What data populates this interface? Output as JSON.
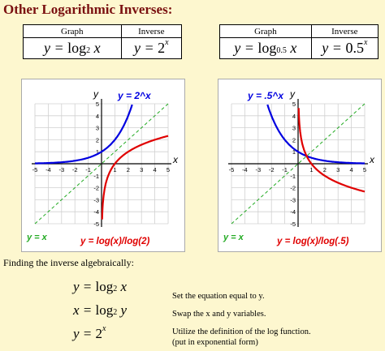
{
  "page_title": "Other Logarithmic Inverses:",
  "tables": [
    {
      "header_graph": "Graph",
      "header_inverse": "Inverse",
      "graph_base": "2",
      "inverse_base": "2"
    },
    {
      "header_graph": "Graph",
      "header_inverse": "Inverse",
      "graph_base": "0.5",
      "inverse_base": "0.5"
    }
  ],
  "eq_symbols": {
    "y": "y",
    "x": "x",
    "eq": "=",
    "log": "log"
  },
  "charts": [
    {
      "label_exp": "y = 2^x",
      "label_log": "y = log(x)/log(2)",
      "label_line": "y = x",
      "x_axis_label": "x",
      "y_axis_label": "y",
      "x_ticks": [
        "-5",
        "-4",
        "-3",
        "-2",
        "-1",
        "1",
        "2",
        "3",
        "4",
        "5"
      ],
      "y_ticks": [
        "5",
        "4",
        "3",
        "2",
        "1",
        "-1",
        "-2",
        "-3",
        "-4",
        "-5"
      ]
    },
    {
      "label_exp": "y = .5^x",
      "label_log": "y = log(x)/log(.5)",
      "label_line": "y = x",
      "x_axis_label": "x",
      "y_axis_label": "y",
      "x_ticks": [
        "-5",
        "-4",
        "-3",
        "-2",
        "-1",
        "1",
        "2",
        "3",
        "4",
        "5"
      ],
      "y_ticks": [
        "5",
        "4",
        "3",
        "2",
        "1",
        "-1",
        "-2",
        "-3",
        "-4",
        "-5"
      ]
    }
  ],
  "chart_data": [
    {
      "type": "line",
      "xlim": [
        -5,
        5
      ],
      "ylim": [
        -5,
        5
      ],
      "grid": true,
      "series": [
        {
          "name": "y = 2^x",
          "color": "#0000e0",
          "base": 2,
          "kind": "exp"
        },
        {
          "name": "y = log(x)/log(2)",
          "color": "#e00000",
          "base": 2,
          "kind": "log"
        },
        {
          "name": "y = x",
          "color": "#22aa22",
          "kind": "identity"
        }
      ]
    },
    {
      "type": "line",
      "xlim": [
        -5,
        5
      ],
      "ylim": [
        -5,
        5
      ],
      "grid": true,
      "series": [
        {
          "name": "y = .5^x",
          "color": "#0000e0",
          "base": 0.5,
          "kind": "exp"
        },
        {
          "name": "y = log(x)/log(.5)",
          "color": "#e00000",
          "base": 0.5,
          "kind": "log"
        },
        {
          "name": "y = x",
          "color": "#22aa22",
          "kind": "identity"
        }
      ]
    }
  ],
  "algebra": {
    "title": "Finding the inverse algebraically:",
    "steps": [
      {
        "lhs": "y",
        "op": "log",
        "sub": "2",
        "var": "x",
        "note": "Set the equation equal to y."
      },
      {
        "lhs": "x",
        "op": "log",
        "sub": "2",
        "var": "y",
        "note": "Swap the x and y variables."
      },
      {
        "lhs": "y",
        "base": "2",
        "exp": "x",
        "note": "Utilize the definition of the log function.",
        "note2": "(put in exponential form)"
      }
    ]
  },
  "colors": {
    "title": "#7a1010",
    "background": "#fdf7cf",
    "exp_curve": "#0000e0",
    "log_curve": "#e00000",
    "identity": "#22aa22"
  }
}
